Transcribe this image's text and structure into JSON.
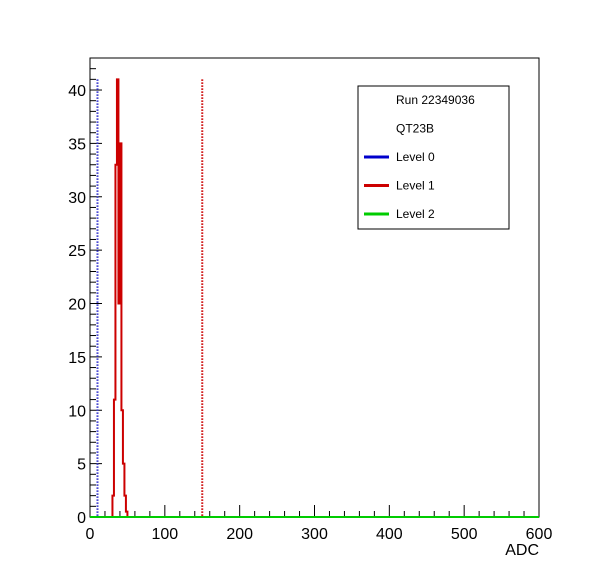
{
  "chart_data": {
    "type": "line",
    "title": "",
    "xlabel": "ADC",
    "ylabel": "",
    "xlim": [
      0,
      600
    ],
    "ylim": [
      0,
      43
    ],
    "xticks": [
      0,
      100,
      200,
      300,
      400,
      500,
      600
    ],
    "yticks": [
      0,
      5,
      10,
      15,
      20,
      25,
      30,
      35,
      40
    ],
    "grid": false,
    "legend_position": "top-right",
    "legend_lines": [
      "Run 22349036",
      "QT23B"
    ],
    "series": [
      {
        "name": "Level 0",
        "color": "#0000cc",
        "step": true,
        "x": [
          0,
          600
        ],
        "y": [
          0,
          0
        ]
      },
      {
        "name": "Level 1",
        "color": "#cc0000",
        "step": true,
        "x": [
          28,
          30,
          32,
          34,
          36,
          38,
          40,
          42,
          44,
          46,
          48,
          50,
          52
        ],
        "y": [
          0,
          2,
          11,
          33,
          41,
          20,
          35,
          10,
          5,
          2,
          0.5,
          0,
          0
        ]
      },
      {
        "name": "Level 2",
        "color": "#00cc00",
        "step": true,
        "x": [
          0,
          600
        ],
        "y": [
          0,
          0
        ]
      }
    ],
    "reference_lines": [
      {
        "color": "#3333cc",
        "x": 10,
        "y_max": 41
      },
      {
        "color": "#cc0000",
        "x": 150,
        "y_max": 41
      }
    ]
  }
}
